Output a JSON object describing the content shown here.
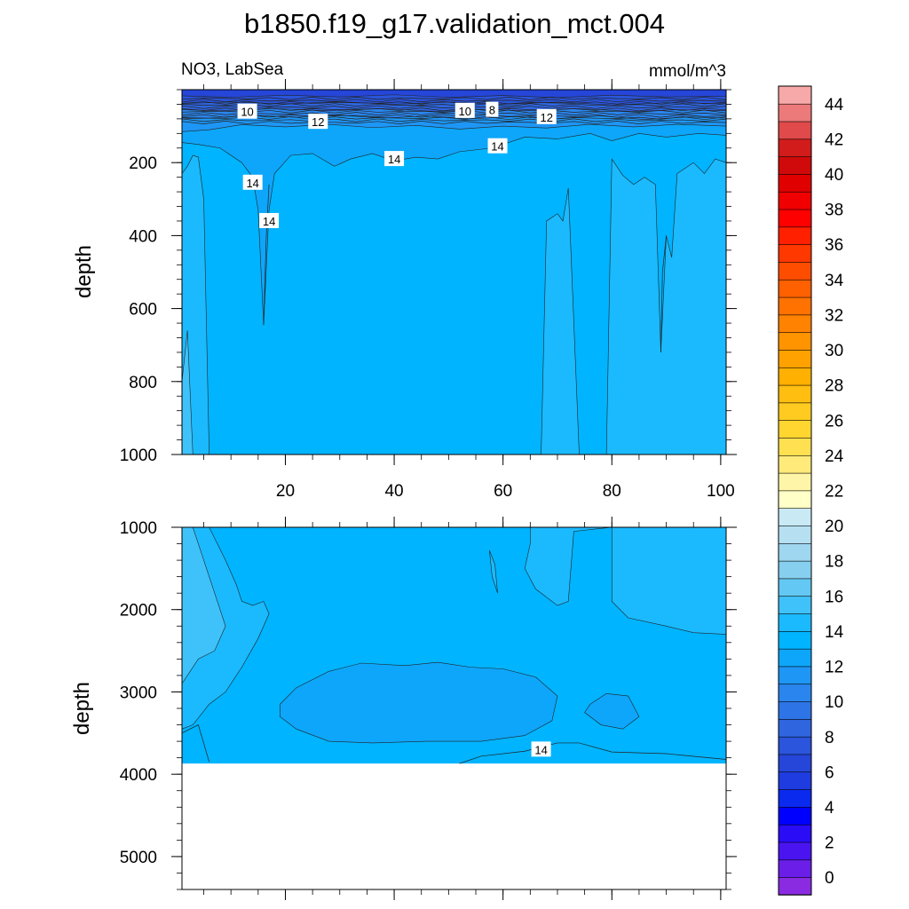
{
  "chart_data": {
    "type": "heatmap",
    "title": "b1850.f19_g17.validation_mct.004",
    "variable_label": "NO3, LabSea",
    "units_label": "mmol/m^3",
    "panels": [
      {
        "name": "upper",
        "xlim": [
          1,
          101
        ],
        "ylim": [
          0,
          1000
        ],
        "y_inverted": true,
        "xticks": [
          20,
          40,
          60,
          80,
          100
        ],
        "xtick_labels": [
          "20",
          "40",
          "60",
          "80",
          "100"
        ],
        "yticks": [
          200,
          400,
          600,
          800,
          1000
        ],
        "ytick_labels": [
          "200",
          "400",
          "600",
          "800",
          "1000"
        ],
        "ylabel": "depth",
        "contour_labels": [
          {
            "text": "10",
            "x": 13,
            "y": 60
          },
          {
            "text": "12",
            "x": 26,
            "y": 88
          },
          {
            "text": "10",
            "x": 53,
            "y": 58
          },
          {
            "text": "8",
            "x": 58,
            "y": 55
          },
          {
            "text": "12",
            "x": 68,
            "y": 75
          },
          {
            "text": "14",
            "x": 59,
            "y": 155
          },
          {
            "text": "14",
            "x": 40,
            "y": 190
          },
          {
            "text": "14",
            "x": 14,
            "y": 255
          },
          {
            "text": "14",
            "x": 17,
            "y": 360
          }
        ]
      },
      {
        "name": "lower",
        "xlim": [
          1,
          101
        ],
        "ylim": [
          1000,
          5400
        ],
        "y_inverted": true,
        "yticks": [
          1000,
          2000,
          3000,
          4000,
          5000
        ],
        "ytick_labels": [
          "1000",
          "2000",
          "3000",
          "4000",
          "5000"
        ],
        "ylabel": "depth",
        "data_bottom_depth": 3870,
        "contour_labels": [
          {
            "text": "14",
            "x": 67,
            "y": 3700
          }
        ]
      }
    ],
    "colorbar": {
      "levels": [
        0,
        2,
        4,
        6,
        8,
        10,
        12,
        14,
        16,
        18,
        20,
        22,
        24,
        26,
        28,
        30,
        32,
        34,
        36,
        38,
        40,
        42,
        44
      ],
      "labels": [
        "0",
        "2",
        "4",
        "6",
        "8",
        "10",
        "12",
        "14",
        "16",
        "18",
        "20",
        "22",
        "24",
        "26",
        "28",
        "30",
        "32",
        "34",
        "36",
        "38",
        "40",
        "42",
        "44"
      ],
      "colors": [
        "#8a2be2",
        "#6a1ee8",
        "#4a14f0",
        "#2a0cf7",
        "#0000ff",
        "#0a2aee",
        "#1e3ce0",
        "#2546d8",
        "#2a55dc",
        "#2f66e0",
        "#2d74e6",
        "#2a86ee",
        "#1e96f5",
        "#0ea6fa",
        "#00b4ff",
        "#1bbaff",
        "#3fc2fa",
        "#63c8f3",
        "#86cfee",
        "#9fd6f0",
        "#b6e0f2",
        "#c9e9f5",
        "#ffffc8",
        "#fff5a8",
        "#ffea7a",
        "#ffe050",
        "#ffd530",
        "#ffcb20",
        "#ffbe10",
        "#ffb000",
        "#ffa200",
        "#ff9300",
        "#ff8300",
        "#ff7200",
        "#ff6000",
        "#ff4d00",
        "#ff3800",
        "#ff2000",
        "#ff0000",
        "#f00000",
        "#e00000",
        "#d00a0a",
        "#d21c1c",
        "#e04a4a",
        "#ec7a7a",
        "#f7a8a8"
      ]
    }
  }
}
